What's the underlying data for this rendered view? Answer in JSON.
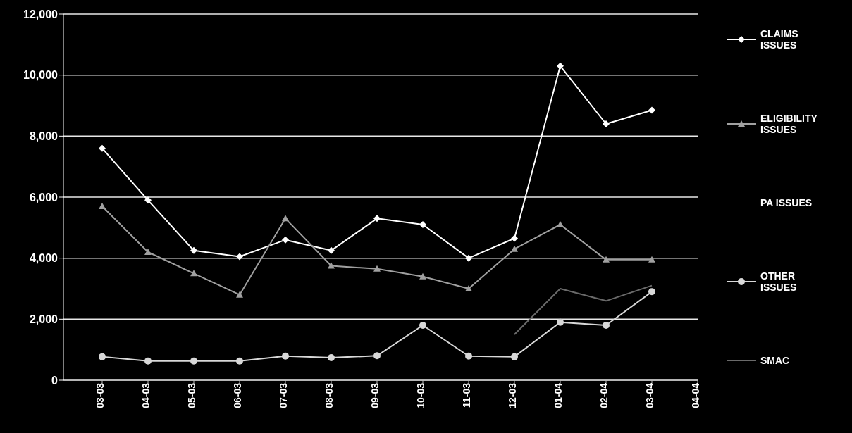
{
  "chart_data": {
    "type": "line",
    "categories": [
      "03-03",
      "04-03",
      "05-03",
      "06-03",
      "07-03",
      "08-03",
      "09-03",
      "10-03",
      "11-03",
      "12-03",
      "01-04",
      "02-04",
      "03-04",
      "04-04"
    ],
    "series": [
      {
        "name": "CLAIMS ISSUES",
        "color": "#ffffff",
        "marker": "diamond",
        "values": [
          7600,
          5900,
          4250,
          4050,
          4600,
          4250,
          5300,
          5100,
          4000,
          4650,
          10300,
          8400,
          8850,
          null
        ]
      },
      {
        "name": "ELIGIBILITY ISSUES",
        "color": "#a0a0a0",
        "marker": "triangle",
        "values": [
          5700,
          4200,
          3500,
          2800,
          5300,
          3750,
          3650,
          3400,
          3000,
          4300,
          5100,
          3950,
          3950,
          null
        ]
      },
      {
        "name": "PA ISSUES",
        "marker": "none",
        "values": [
          null,
          null,
          null,
          null,
          null,
          null,
          null,
          null,
          null,
          null,
          null,
          null,
          null,
          null
        ]
      },
      {
        "name": "OTHER ISSUES",
        "color": "#d8d8d8",
        "marker": "circle",
        "values": [
          770,
          630,
          630,
          630,
          790,
          740,
          800,
          1800,
          790,
          770,
          1900,
          1800,
          2900,
          null
        ]
      },
      {
        "name": "SMAC",
        "color": "#6a6a6a",
        "marker": "none",
        "values": [
          null,
          null,
          null,
          null,
          null,
          null,
          null,
          null,
          null,
          1500,
          3000,
          2600,
          3100,
          null
        ]
      }
    ],
    "ylim": [
      0,
      12000
    ],
    "yticks": [
      0,
      {
        "value": 2000,
        "label": "2,000"
      },
      {
        "value": 4000,
        "label": "4,000"
      },
      {
        "value": 6000,
        "label": "6,000"
      },
      {
        "value": 8000,
        "label": "8,000"
      },
      {
        "value": 10000,
        "label": "10,000"
      },
      {
        "value": 12000,
        "label": "12,000"
      }
    ],
    "grid": "y",
    "legend": "right"
  }
}
